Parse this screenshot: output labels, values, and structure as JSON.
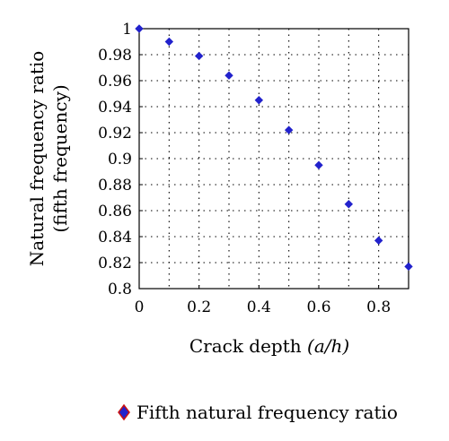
{
  "chart_data": {
    "type": "scatter",
    "xlabel": "Crack depth",
    "xlabel_unit": "(a/h)",
    "ylabel_line1": "Natural frequency ratio",
    "ylabel_line2": "(fifth frequency)",
    "xlim": [
      0,
      0.9
    ],
    "ylim": [
      0.8,
      1.0
    ],
    "x_ticks": [
      0,
      0.2,
      0.4,
      0.6,
      0.8
    ],
    "x_tick_labels": [
      "0",
      "0.2",
      "0.4",
      "0.6",
      "0.8"
    ],
    "y_ticks": [
      0.8,
      0.82,
      0.84,
      0.86,
      0.88,
      0.9,
      0.92,
      0.94,
      0.96,
      0.98,
      1.0
    ],
    "y_tick_labels": [
      "0.8",
      "0.82",
      "0.84",
      "0.86",
      "0.88",
      "0.9",
      "0.92",
      "0.94",
      "0.96",
      "0.98",
      "1"
    ],
    "grid": true,
    "grid_style": "dotted",
    "legend_position": "bottom",
    "series": [
      {
        "name": "Fifth natural frequency ratio",
        "marker": "diamond",
        "marker_fill": "#2222cc",
        "marker_edge": "#cc1111",
        "x": [
          0,
          0.1,
          0.2,
          0.3,
          0.4,
          0.5,
          0.6,
          0.7,
          0.8,
          0.9
        ],
        "y": [
          1.0,
          0.99,
          0.979,
          0.964,
          0.945,
          0.922,
          0.895,
          0.865,
          0.837,
          0.817
        ]
      }
    ]
  }
}
